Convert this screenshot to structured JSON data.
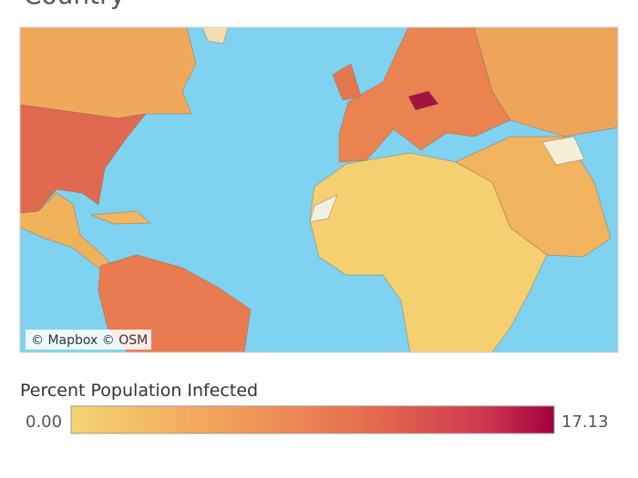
{
  "title": "Country",
  "map": {
    "attribution": "© Mapbox © OSM"
  },
  "legend": {
    "title": "Percent Population Infected",
    "min": "0.00",
    "max": "17.13"
  }
}
